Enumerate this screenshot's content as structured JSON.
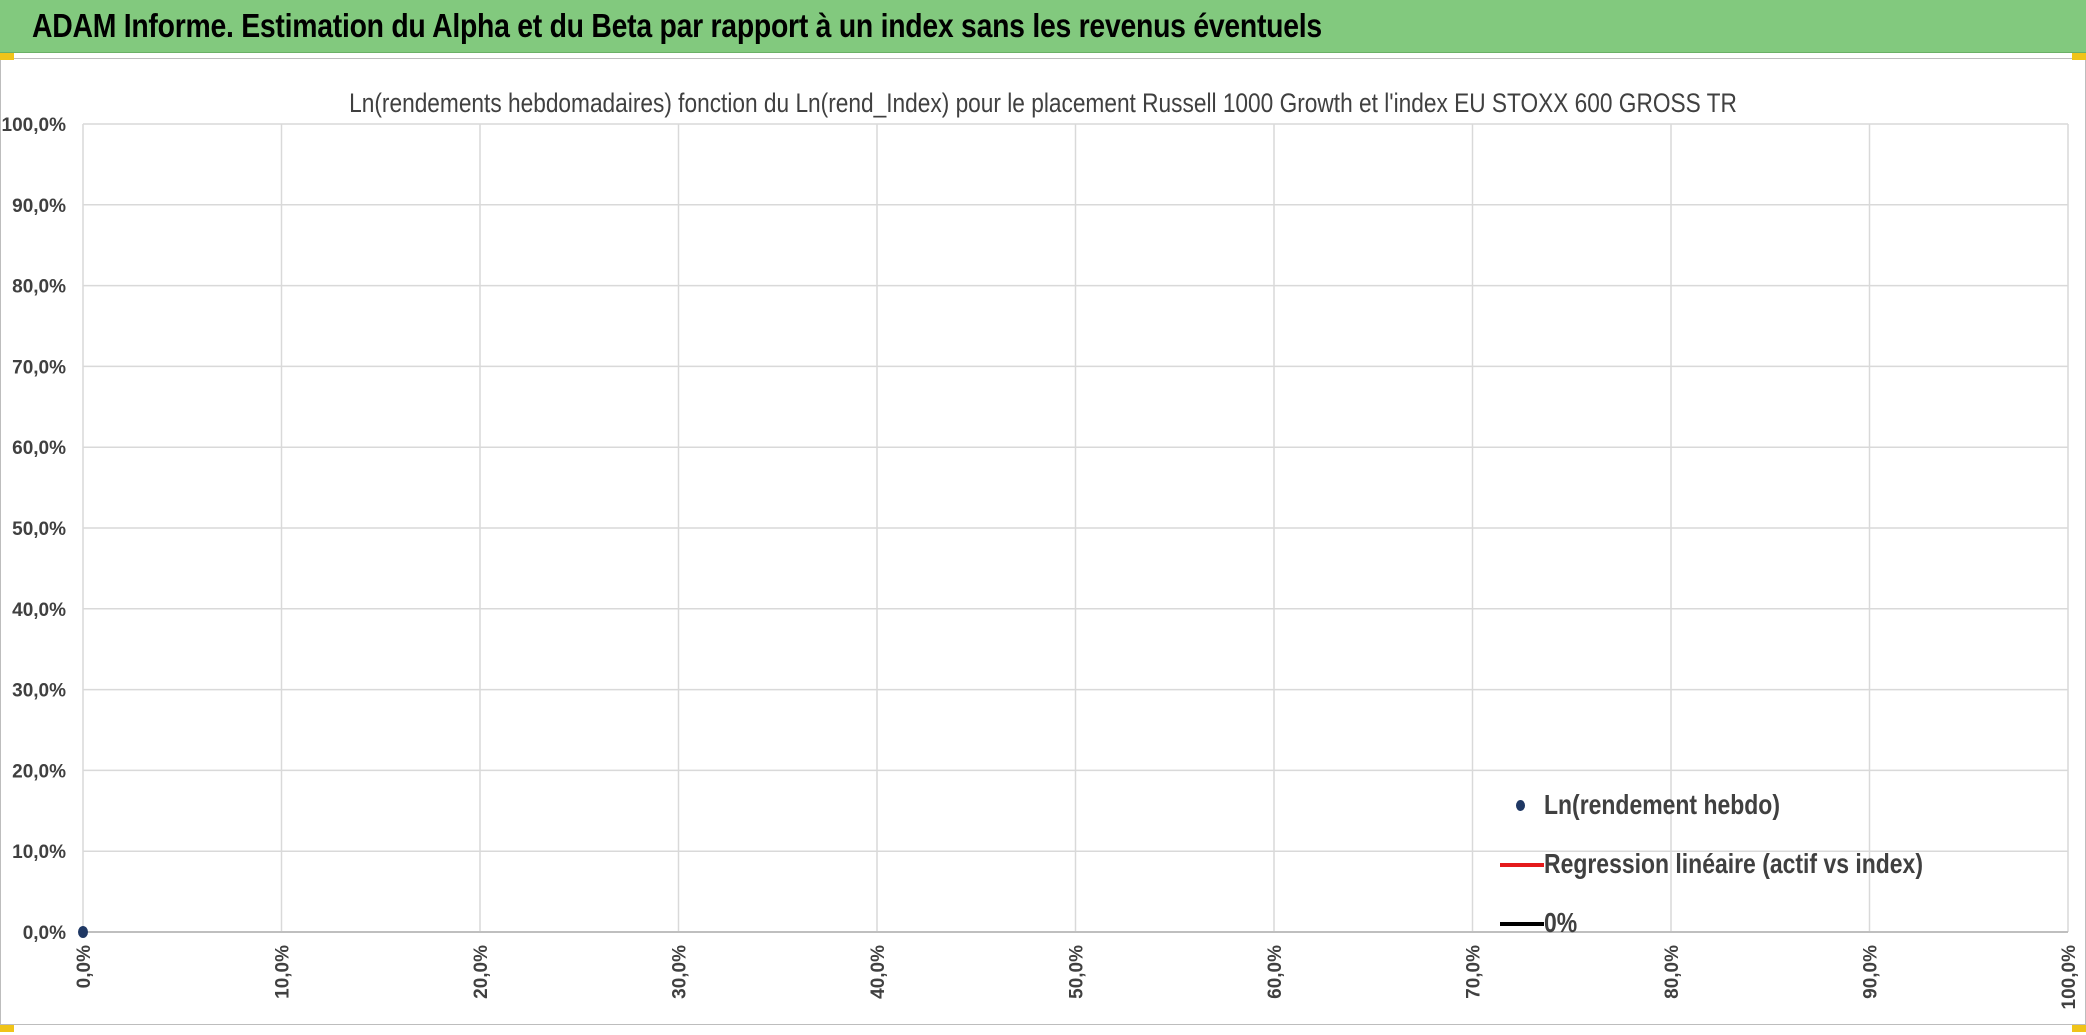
{
  "header": {
    "title": "ADAM Informe. Estimation du Alpha et du Beta par rapport à un index sans les revenus éventuels"
  },
  "colors": {
    "header_bg": "#82c97e",
    "point": "#1f3864",
    "regression": "#e41a1c",
    "zero_line": "#000000",
    "grid": "#d9d9d9"
  },
  "chart_data": {
    "type": "scatter",
    "title": "Ln(rendements hebdomadaires) fonction du Ln(rend_Index) pour le placement Russell 1000 Growth et l'index EU STOXX 600 GROSS TR",
    "xlabel": "",
    "ylabel": "",
    "xlim": [
      0,
      1
    ],
    "ylim": [
      0,
      1
    ],
    "x_ticks": [
      "0,0%",
      "10,0%",
      "20,0%",
      "30,0%",
      "40,0%",
      "50,0%",
      "60,0%",
      "70,0%",
      "80,0%",
      "90,0%",
      "100,0%"
    ],
    "y_ticks": [
      "0,0%",
      "10,0%",
      "20,0%",
      "30,0%",
      "40,0%",
      "50,0%",
      "60,0%",
      "70,0%",
      "80,0%",
      "90,0%",
      "100,0%"
    ],
    "grid": true,
    "legend_position": "bottom-right",
    "series": [
      {
        "name": "Ln(rendement hebdo)",
        "kind": "points",
        "x": [
          0
        ],
        "y": [
          0
        ]
      },
      {
        "name": "Regression linéaire (actif vs index)",
        "kind": "line",
        "x": [],
        "y": []
      },
      {
        "name": "0%",
        "kind": "line",
        "x": [],
        "y": []
      }
    ]
  }
}
